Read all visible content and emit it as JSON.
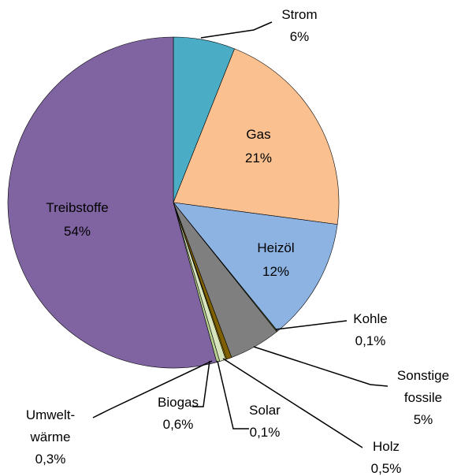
{
  "chart_data": {
    "type": "pie",
    "categories": [
      "Strom",
      "Gas",
      "Heizöl",
      "Kohle",
      "Sonstige\nfossile",
      "Holz",
      "Solar",
      "Biogas",
      "Umwelt-\nwärme",
      "Treibstoffe"
    ],
    "values": [
      6,
      21,
      12,
      0.1,
      5,
      0.5,
      0.1,
      0.6,
      0.3,
      54
    ],
    "value_labels": [
      "6%",
      "21%",
      "12%",
      "0,1%",
      "5%",
      "0,5%",
      "0,1%",
      "0,6%",
      "0,3%",
      "54%"
    ],
    "colors": [
      "#4bacc6",
      "#fac090",
      "#8db3e2",
      "#4f6228",
      "#7f7f7f",
      "#7f6000",
      "#c9a800",
      "#d7e4bd",
      "#b7cf8f",
      "#8064a2"
    ]
  }
}
